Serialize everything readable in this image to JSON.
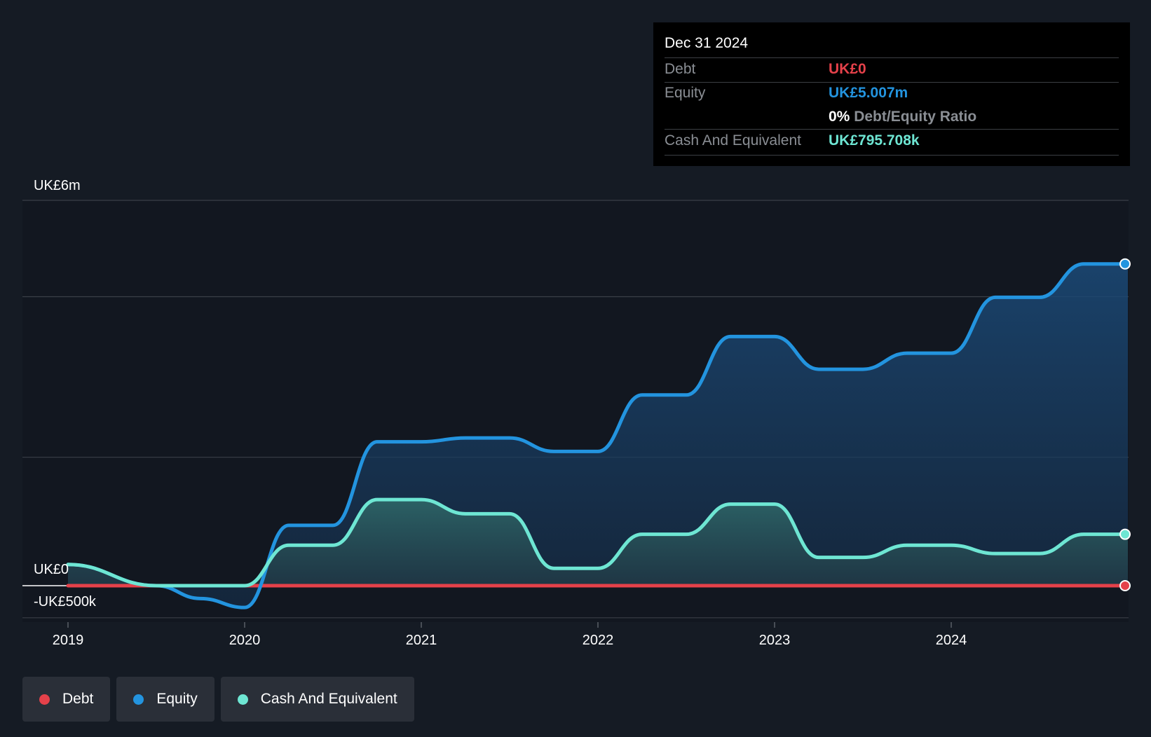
{
  "tooltip": {
    "date": "Dec 31 2024",
    "debt_label": "Debt",
    "debt_value": "UK£0",
    "equity_label": "Equity",
    "equity_value": "UK£5.007m",
    "ratio_value": "0%",
    "ratio_label": "Debt/Equity Ratio",
    "cash_label": "Cash And Equivalent",
    "cash_value": "UK£795.708k"
  },
  "legend": [
    {
      "label": "Debt",
      "color": "#e5414a"
    },
    {
      "label": "Equity",
      "color": "#2394df"
    },
    {
      "label": "Cash And Equivalent",
      "color": "#6ee6d3"
    }
  ],
  "colors": {
    "debt": "#e5414a",
    "equity": "#2394df",
    "cash": "#6ee6d3",
    "background": "#151b24"
  },
  "chart_data": {
    "type": "line",
    "y_unit": "GBP",
    "ylim": [
      -500000,
      6000000
    ],
    "xlim": [
      2018.75,
      2025.0
    ],
    "y_tick_labels": [
      {
        "value": 6000000,
        "label": "UK£6m"
      },
      {
        "value": 0,
        "label": "UK£0"
      },
      {
        "value": -500000,
        "label": "-UK£500k"
      }
    ],
    "x_ticks": [
      2019,
      2020,
      2021,
      2022,
      2023,
      2024
    ],
    "x_tick_labels": [
      "2019",
      "2020",
      "2021",
      "2022",
      "2023",
      "2024"
    ],
    "gridlines_y": [
      6000000,
      4500000,
      2000000,
      -500000
    ],
    "legend_position": "bottom-left",
    "series": [
      {
        "name": "Debt",
        "x": [
          2019.0,
          2025.0
        ],
        "y": [
          0,
          0
        ]
      },
      {
        "name": "Equity",
        "x": [
          2019.0,
          2019.5,
          2019.75,
          2020.0,
          2020.25,
          2020.5,
          2020.75,
          2021.0,
          2021.25,
          2021.5,
          2021.75,
          2022.0,
          2022.25,
          2022.5,
          2022.75,
          2023.0,
          2023.25,
          2023.5,
          2023.75,
          2024.0,
          2024.25,
          2024.5,
          2024.75,
          2025.0
        ],
        "y": [
          330000,
          0,
          -200000,
          -340000,
          940000,
          940000,
          2240000,
          2240000,
          2300000,
          2300000,
          2090000,
          2090000,
          2970000,
          2970000,
          3880000,
          3880000,
          3370000,
          3370000,
          3620000,
          3620000,
          4490000,
          4490000,
          5010000,
          5010000
        ]
      },
      {
        "name": "Cash And Equivalent",
        "x": [
          2019.0,
          2019.5,
          2019.75,
          2020.0,
          2020.25,
          2020.5,
          2020.75,
          2021.0,
          2021.25,
          2021.5,
          2021.75,
          2022.0,
          2022.25,
          2022.5,
          2022.75,
          2023.0,
          2023.25,
          2023.5,
          2023.75,
          2024.0,
          2024.25,
          2024.5,
          2024.75,
          2025.0
        ],
        "y": [
          330000,
          0,
          0,
          0,
          630000,
          630000,
          1340000,
          1340000,
          1120000,
          1120000,
          270000,
          270000,
          800000,
          800000,
          1270000,
          1270000,
          440000,
          440000,
          630000,
          630000,
          500000,
          500000,
          800000,
          800000
        ]
      }
    ]
  }
}
